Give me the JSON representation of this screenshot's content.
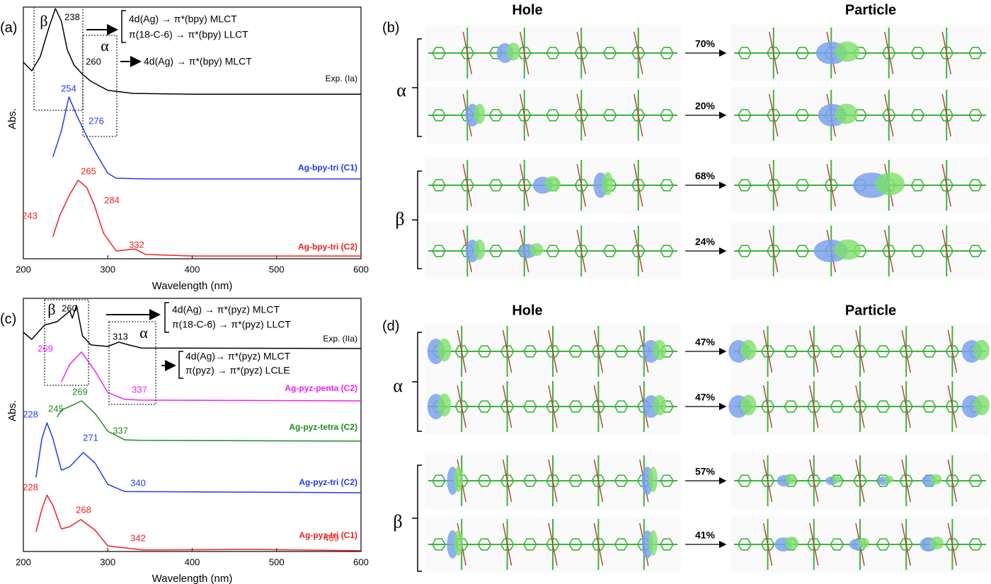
{
  "chart_data": [
    {
      "type": "line",
      "panel_label": "(a)",
      "xlabel": "Wavelength (nm)",
      "ylabel": "Abs.",
      "xlim": [
        200,
        600
      ],
      "xticks": [
        200,
        300,
        400,
        500,
        600
      ],
      "ylim": [
        0,
        1
      ],
      "series": [
        {
          "name": "Exp. (Ia)",
          "color": "#000000",
          "x": [
            200,
            210,
            220,
            230,
            238,
            245,
            252,
            260,
            270,
            280,
            300,
            330,
            400,
            600
          ],
          "values": [
            0.781,
            0.747,
            0.803,
            0.916,
            0.994,
            0.944,
            0.831,
            0.77,
            0.733,
            0.705,
            0.669,
            0.657,
            0.654,
            0.654
          ],
          "peak_labels": []
        },
        {
          "name": "Ag-bpy-tri (C1)",
          "color": "#1f3cf0",
          "x": [
            235,
            245,
            254,
            262,
            276,
            290,
            300,
            310,
            350,
            600
          ],
          "values": [
            0.404,
            0.508,
            0.643,
            0.579,
            0.48,
            0.396,
            0.34,
            0.32,
            0.317,
            0.317
          ],
          "peak_labels": [
            "254",
            "276"
          ]
        },
        {
          "name": "Ag-bpy-tri (C2)",
          "color": "#f02020",
          "x": [
            235,
            243,
            255,
            265,
            275,
            284,
            295,
            310,
            332,
            345,
            400,
            600
          ],
          "values": [
            0.087,
            0.171,
            0.256,
            0.312,
            0.284,
            0.213,
            0.101,
            0.031,
            0.039,
            0.017,
            0.011,
            0.011
          ],
          "peak_labels": [
            "265",
            "284",
            "243",
            "332"
          ]
        }
      ],
      "regions": [
        {
          "symbol": "β",
          "peak": "238",
          "transitions": [
            "4d(Ag) → π*(bpy) MLCT",
            "π(18-C-6) → π*(bpy) LLCT"
          ]
        },
        {
          "symbol": "α",
          "peak": "260",
          "transitions": [
            "4d(Ag) → π*(bpy) MLCT"
          ]
        }
      ]
    },
    {
      "type": "line",
      "panel_label": "(c)",
      "xlabel": "Wavelength (nm)",
      "ylabel": "Abs.",
      "xlim": [
        200,
        600
      ],
      "xticks": [
        200,
        300,
        400,
        500,
        600
      ],
      "ylim": [
        0,
        1
      ],
      "series": [
        {
          "name": "Exp. (IIa)",
          "color": "#000000",
          "x": [
            200,
            210,
            225,
            240,
            250,
            255,
            258,
            263,
            270,
            280,
            300,
            313,
            325,
            340,
            600
          ],
          "values": [
            0.866,
            0.838,
            0.894,
            0.908,
            0.936,
            0.95,
            0.922,
            0.972,
            0.852,
            0.816,
            0.81,
            0.827,
            0.816,
            0.804,
            0.802
          ],
          "peak_labels": []
        },
        {
          "name": "Ag-pyz-penta (C2)",
          "color": "#f020f0",
          "x": [
            245,
            255,
            269,
            285,
            300,
            320,
            337,
            600
          ],
          "values": [
            0.67,
            0.74,
            0.788,
            0.712,
            0.628,
            0.601,
            0.598,
            0.595
          ],
          "peak_labels": [
            "269",
            "337"
          ]
        },
        {
          "name": "Ag-pyz-tetra (C2)",
          "color": "#1e8c1e",
          "x": [
            240,
            245,
            255,
            269,
            285,
            300,
            320,
            337,
            600
          ],
          "values": [
            0.531,
            0.559,
            0.573,
            0.595,
            0.545,
            0.475,
            0.441,
            0.439,
            0.436
          ],
          "peak_labels": [
            "269",
            "245",
            "337"
          ]
        },
        {
          "name": "Ag-pyz-tri (C2)",
          "color": "#1f3cf0",
          "x": [
            215,
            222,
            228,
            235,
            245,
            255,
            271,
            285,
            300,
            320,
            600
          ],
          "values": [
            0.293,
            0.447,
            0.508,
            0.447,
            0.321,
            0.335,
            0.391,
            0.349,
            0.265,
            0.237,
            0.232
          ],
          "peak_labels": [
            "228",
            "271",
            "340"
          ]
        },
        {
          "name": "Ag-pyz-tri (C1)",
          "color": "#f02020",
          "x": [
            215,
            222,
            228,
            235,
            245,
            255,
            268,
            285,
            300,
            342,
            469,
            600
          ],
          "values": [
            0.078,
            0.168,
            0.223,
            0.182,
            0.089,
            0.098,
            0.126,
            0.084,
            0.022,
            0.006,
            0.008,
            0.003
          ],
          "peak_labels": [
            "228",
            "268",
            "342",
            "469"
          ]
        }
      ],
      "regions": [
        {
          "symbol": "β",
          "peak": "260",
          "transitions": [
            "4d(Ag) → π*(pyz) MLCT",
            "π(18-C-6) → π*(pyz) LLCT"
          ]
        },
        {
          "symbol": "α",
          "peak": "313",
          "transitions": [
            "4d(Ag)→ π*(pyz) MLCT",
            "π(pyz) → π*(pyz) LCLE"
          ]
        }
      ]
    }
  ],
  "orbital_panels": [
    {
      "panel_label": "(b)",
      "hole": "Hole",
      "particle": "Particle",
      "groups": [
        {
          "symbol": "α",
          "percents": [
            "70%",
            "20%"
          ]
        },
        {
          "symbol": "β",
          "percents": [
            "68%",
            "24%"
          ]
        }
      ]
    },
    {
      "panel_label": "(d)",
      "hole": "Hole",
      "particle": "Particle",
      "groups": [
        {
          "symbol": "α",
          "percents": [
            "47%",
            "47%"
          ]
        },
        {
          "symbol": "β",
          "percents": [
            "57%",
            "41%"
          ]
        }
      ]
    }
  ]
}
